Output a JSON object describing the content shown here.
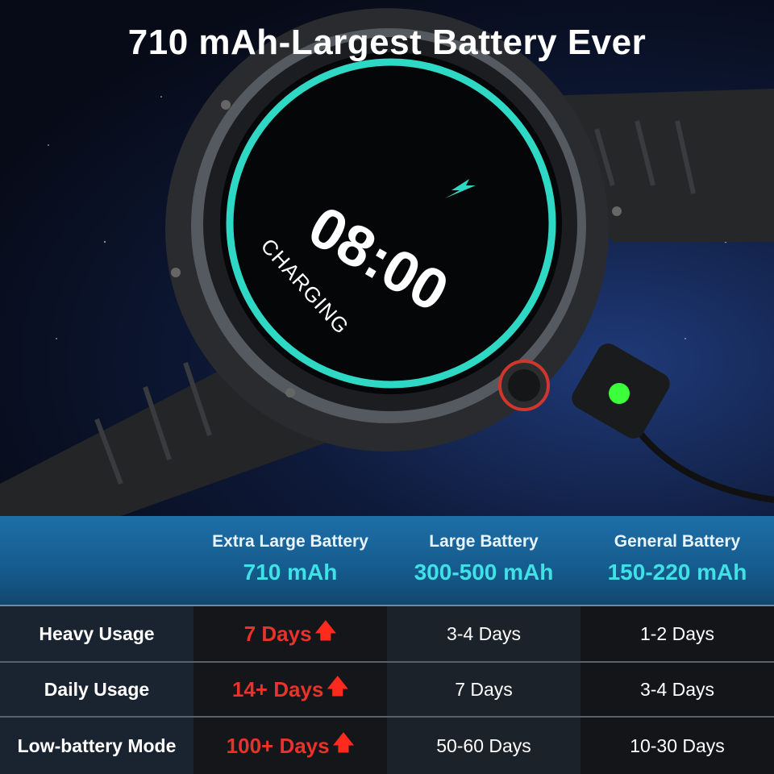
{
  "title": "710 mAh-Largest Battery Ever",
  "watch": {
    "time": "08:00",
    "status": "CHARGING",
    "ring_color": "#2fd8c4",
    "icon": "lightning-bolt-icon"
  },
  "table": {
    "columns": [
      {
        "name": "Extra Large Battery",
        "capacity": "710 mAh"
      },
      {
        "name": "Large Battery",
        "capacity": "300-500 mAh"
      },
      {
        "name": "General Battery",
        "capacity": "150-220 mAh"
      }
    ],
    "rows": [
      {
        "label": "Heavy Usage",
        "values": [
          "7 Days",
          "3-4 Days",
          "1-2 Days"
        ]
      },
      {
        "label": "Daily Usage",
        "values": [
          "14+ Days",
          "7 Days",
          "3-4 Days"
        ]
      },
      {
        "label": "Low-battery Mode",
        "values": [
          "100+ Days",
          "50-60 Days",
          "10-30 Days"
        ]
      }
    ],
    "highlight_color": "#e8322a",
    "capacity_color": "#3fe0e6"
  }
}
